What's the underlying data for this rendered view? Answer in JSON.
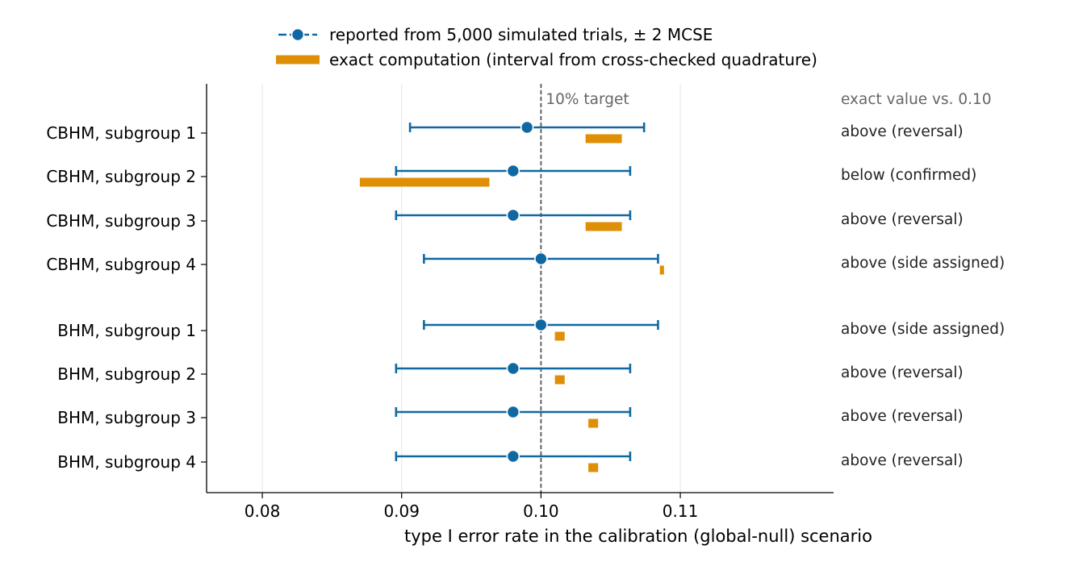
{
  "chart_data": {
    "type": "forest",
    "xlabel": "type I error rate in the calibration (global-null) scenario",
    "xlim": [
      0.076,
      0.121
    ],
    "xticks": [
      "0.08",
      "0.09",
      "0.10",
      "0.11"
    ],
    "grid": "vertical",
    "legend_position": "top-center",
    "legend": [
      "reported from 5,000 simulated trials, ± 2 MCSE",
      "exact computation (interval from cross-checked quadrature)"
    ],
    "reference_line": {
      "x": 0.1,
      "label": "10% target"
    },
    "notes_header": "exact value vs. 0.10",
    "colors": {
      "reported": "#1068a3",
      "exact": "#de8f05",
      "reference": "#555555",
      "grid": "#e6e6e6"
    },
    "rows": [
      {
        "label": "CBHM, subgroup 1",
        "reported": 0.099,
        "mcse_lo": 0.0906,
        "mcse_hi": 0.1074,
        "exact_lo": 0.1032,
        "exact_hi": 0.1058,
        "note": "above (reversal)"
      },
      {
        "label": "CBHM, subgroup 2",
        "reported": 0.098,
        "mcse_lo": 0.0896,
        "mcse_hi": 0.1064,
        "exact_lo": 0.087,
        "exact_hi": 0.0963,
        "note": "below (confirmed)"
      },
      {
        "label": "CBHM, subgroup 3",
        "reported": 0.098,
        "mcse_lo": 0.0896,
        "mcse_hi": 0.1064,
        "exact_lo": 0.1032,
        "exact_hi": 0.1058,
        "note": "above (reversal)"
      },
      {
        "label": "CBHM, subgroup 4",
        "reported": 0.1,
        "mcse_lo": 0.0916,
        "mcse_hi": 0.1084,
        "exact_lo": 0.10853,
        "exact_hi": 0.10883,
        "note": "above (side assigned)"
      },
      {
        "label": "BHM, subgroup 1",
        "reported": 0.1,
        "mcse_lo": 0.0916,
        "mcse_hi": 0.1084,
        "exact_lo": 0.101,
        "exact_hi": 0.1017,
        "note": "above (side assigned)"
      },
      {
        "label": "BHM, subgroup 2",
        "reported": 0.098,
        "mcse_lo": 0.0896,
        "mcse_hi": 0.1064,
        "exact_lo": 0.101,
        "exact_hi": 0.1017,
        "note": "above (reversal)"
      },
      {
        "label": "BHM, subgroup 3",
        "reported": 0.098,
        "mcse_lo": 0.0896,
        "mcse_hi": 0.1064,
        "exact_lo": 0.1034,
        "exact_hi": 0.1041,
        "note": "above (reversal)"
      },
      {
        "label": "BHM, subgroup 4",
        "reported": 0.098,
        "mcse_lo": 0.0896,
        "mcse_hi": 0.1064,
        "exact_lo": 0.1034,
        "exact_hi": 0.1041,
        "note": "above (reversal)"
      }
    ]
  }
}
